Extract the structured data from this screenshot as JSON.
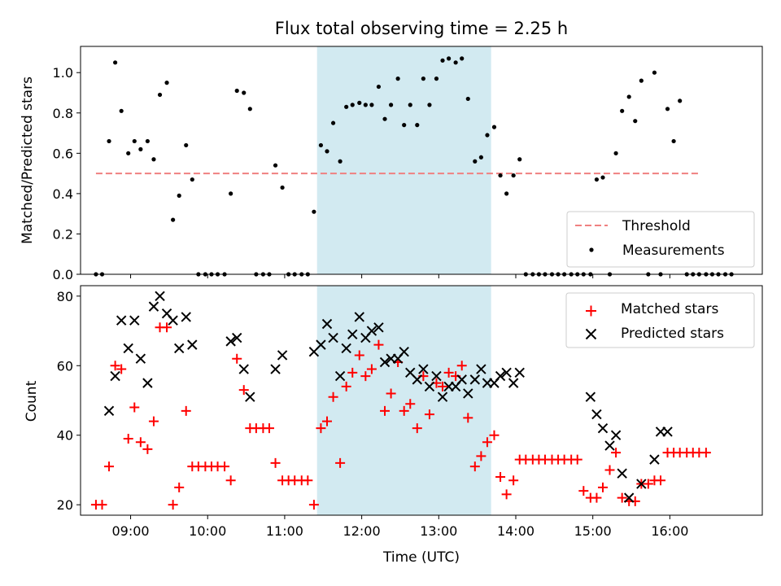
{
  "chart_data": [
    {
      "type": "scatter",
      "title": "Flux total observing time = 2.25 h",
      "xlabel": "",
      "ylabel": "Matched/Predicted stars",
      "xlim": [
        8.35,
        17.2
      ],
      "ylim": [
        0,
        1.13
      ],
      "yticks": [
        0.0,
        0.2,
        0.4,
        0.6,
        0.8,
        1.0
      ],
      "ytick_labels": [
        "0.0",
        "0.2",
        "0.4",
        "0.6",
        "0.8",
        "1.0"
      ],
      "xticks": [
        9,
        10,
        11,
        12,
        13,
        14,
        15,
        16
      ],
      "xtick_labels_visible": false,
      "shaded_region": {
        "x": [
          11.42,
          13.68
        ],
        "color": "#add8e6"
      },
      "threshold": {
        "name": "Threshold",
        "y": 0.5,
        "x": [
          8.55,
          16.4
        ],
        "color": "#f08080"
      },
      "legend_position": "bottom-right",
      "series": [
        {
          "name": "Measurements",
          "color": "#000000",
          "marker": "dot",
          "points": [
            [
              8.55,
              0.0
            ],
            [
              8.63,
              0.0
            ],
            [
              8.72,
              0.66
            ],
            [
              8.8,
              1.05
            ],
            [
              8.88,
              0.81
            ],
            [
              8.97,
              0.6
            ],
            [
              9.05,
              0.66
            ],
            [
              9.13,
              0.62
            ],
            [
              9.22,
              0.66
            ],
            [
              9.3,
              0.57
            ],
            [
              9.38,
              0.89
            ],
            [
              9.47,
              0.95
            ],
            [
              9.55,
              0.27
            ],
            [
              9.63,
              0.39
            ],
            [
              9.72,
              0.64
            ],
            [
              9.8,
              0.47
            ],
            [
              9.88,
              0.0
            ],
            [
              9.97,
              0.0
            ],
            [
              10.05,
              0.0
            ],
            [
              10.13,
              0.0
            ],
            [
              10.22,
              0.0
            ],
            [
              10.3,
              0.4
            ],
            [
              10.38,
              0.91
            ],
            [
              10.47,
              0.9
            ],
            [
              10.55,
              0.82
            ],
            [
              10.63,
              0.0
            ],
            [
              10.72,
              0.0
            ],
            [
              10.8,
              0.0
            ],
            [
              10.88,
              0.54
            ],
            [
              10.97,
              0.43
            ],
            [
              11.05,
              0.0
            ],
            [
              11.13,
              0.0
            ],
            [
              11.22,
              0.0
            ],
            [
              11.3,
              0.0
            ],
            [
              11.38,
              0.31
            ],
            [
              11.47,
              0.64
            ],
            [
              11.55,
              0.61
            ],
            [
              11.63,
              0.75
            ],
            [
              11.72,
              0.56
            ],
            [
              11.8,
              0.83
            ],
            [
              11.88,
              0.84
            ],
            [
              11.97,
              0.85
            ],
            [
              12.05,
              0.84
            ],
            [
              12.13,
              0.84
            ],
            [
              12.22,
              0.93
            ],
            [
              12.3,
              0.77
            ],
            [
              12.38,
              0.84
            ],
            [
              12.47,
              0.97
            ],
            [
              12.55,
              0.74
            ],
            [
              12.63,
              0.84
            ],
            [
              12.72,
              0.74
            ],
            [
              12.8,
              0.97
            ],
            [
              12.88,
              0.84
            ],
            [
              12.97,
              0.97
            ],
            [
              13.05,
              1.06
            ],
            [
              13.13,
              1.07
            ],
            [
              13.22,
              1.05
            ],
            [
              13.3,
              1.07
            ],
            [
              13.38,
              0.87
            ],
            [
              13.47,
              0.56
            ],
            [
              13.55,
              0.58
            ],
            [
              13.63,
              0.69
            ],
            [
              13.72,
              0.73
            ],
            [
              13.8,
              0.49
            ],
            [
              13.88,
              0.4
            ],
            [
              13.97,
              0.49
            ],
            [
              14.05,
              0.57
            ],
            [
              14.13,
              0.0
            ],
            [
              14.22,
              0.0
            ],
            [
              14.3,
              0.0
            ],
            [
              14.38,
              0.0
            ],
            [
              14.47,
              0.0
            ],
            [
              14.55,
              0.0
            ],
            [
              14.63,
              0.0
            ],
            [
              14.72,
              0.0
            ],
            [
              14.8,
              0.0
            ],
            [
              14.88,
              0.0
            ],
            [
              14.97,
              0.0
            ],
            [
              15.05,
              0.47
            ],
            [
              15.13,
              0.48
            ],
            [
              15.22,
              0.0
            ],
            [
              15.3,
              0.6
            ],
            [
              15.38,
              0.81
            ],
            [
              15.47,
              0.88
            ],
            [
              15.55,
              0.76
            ],
            [
              15.63,
              0.96
            ],
            [
              15.72,
              0.0
            ],
            [
              15.8,
              1.0
            ],
            [
              15.88,
              0.0
            ],
            [
              15.97,
              0.82
            ],
            [
              16.05,
              0.66
            ],
            [
              16.13,
              0.86
            ],
            [
              16.22,
              0.0
            ],
            [
              16.3,
              0.0
            ],
            [
              16.38,
              0.0
            ],
            [
              16.47,
              0.0
            ],
            [
              16.55,
              0.0
            ],
            [
              16.63,
              0.0
            ],
            [
              16.72,
              0.0
            ],
            [
              16.8,
              0.0
            ]
          ]
        }
      ]
    },
    {
      "type": "scatter",
      "title": "",
      "xlabel": "Time (UTC)",
      "ylabel": "Count",
      "xlim": [
        8.35,
        17.2
      ],
      "ylim": [
        17,
        83
      ],
      "yticks": [
        20,
        40,
        60,
        80
      ],
      "ytick_labels": [
        "20",
        "40",
        "60",
        "80"
      ],
      "xticks": [
        9,
        10,
        11,
        12,
        13,
        14,
        15,
        16
      ],
      "xtick_labels": [
        "09:00",
        "10:00",
        "11:00",
        "12:00",
        "13:00",
        "14:00",
        "15:00",
        "16:00"
      ],
      "shaded_region": {
        "x": [
          11.42,
          13.68
        ],
        "color": "#add8e6"
      },
      "legend_position": "top-right",
      "series": [
        {
          "name": "Matched stars",
          "color": "#ff0000",
          "marker": "plus",
          "points": [
            [
              8.55,
              20
            ],
            [
              8.63,
              20
            ],
            [
              8.72,
              31
            ],
            [
              8.8,
              60
            ],
            [
              8.88,
              59
            ],
            [
              8.97,
              39
            ],
            [
              9.05,
              48
            ],
            [
              9.13,
              38
            ],
            [
              9.22,
              36
            ],
            [
              9.3,
              44
            ],
            [
              9.38,
              71
            ],
            [
              9.47,
              71
            ],
            [
              9.55,
              20
            ],
            [
              9.63,
              25
            ],
            [
              9.72,
              47
            ],
            [
              9.8,
              31
            ],
            [
              9.88,
              31
            ],
            [
              9.97,
              31
            ],
            [
              10.05,
              31
            ],
            [
              10.13,
              31
            ],
            [
              10.22,
              31
            ],
            [
              10.3,
              27
            ],
            [
              10.38,
              62
            ],
            [
              10.47,
              53
            ],
            [
              10.55,
              42
            ],
            [
              10.63,
              42
            ],
            [
              10.72,
              42
            ],
            [
              10.8,
              42
            ],
            [
              10.88,
              32
            ],
            [
              10.97,
              27
            ],
            [
              11.05,
              27
            ],
            [
              11.13,
              27
            ],
            [
              11.22,
              27
            ],
            [
              11.3,
              27
            ],
            [
              11.38,
              20
            ],
            [
              11.47,
              42
            ],
            [
              11.55,
              44
            ],
            [
              11.63,
              51
            ],
            [
              11.72,
              32
            ],
            [
              11.8,
              54
            ],
            [
              11.88,
              58
            ],
            [
              11.97,
              63
            ],
            [
              12.05,
              57
            ],
            [
              12.13,
              59
            ],
            [
              12.22,
              66
            ],
            [
              12.3,
              47
            ],
            [
              12.38,
              52
            ],
            [
              12.47,
              61
            ],
            [
              12.55,
              47
            ],
            [
              12.63,
              49
            ],
            [
              12.72,
              42
            ],
            [
              12.8,
              57
            ],
            [
              12.88,
              46
            ],
            [
              12.97,
              55
            ],
            [
              13.05,
              54
            ],
            [
              13.13,
              58
            ],
            [
              13.22,
              57
            ],
            [
              13.3,
              60
            ],
            [
              13.38,
              45
            ],
            [
              13.47,
              31
            ],
            [
              13.55,
              34
            ],
            [
              13.63,
              38
            ],
            [
              13.72,
              40
            ],
            [
              13.8,
              28
            ],
            [
              13.88,
              23
            ],
            [
              13.97,
              27
            ],
            [
              14.05,
              33
            ],
            [
              14.13,
              33
            ],
            [
              14.22,
              33
            ],
            [
              14.3,
              33
            ],
            [
              14.38,
              33
            ],
            [
              14.47,
              33
            ],
            [
              14.55,
              33
            ],
            [
              14.63,
              33
            ],
            [
              14.72,
              33
            ],
            [
              14.8,
              33
            ],
            [
              14.88,
              24
            ],
            [
              14.97,
              22
            ],
            [
              15.05,
              22
            ],
            [
              15.13,
              25
            ],
            [
              15.22,
              30
            ],
            [
              15.3,
              35
            ],
            [
              15.38,
              22
            ],
            [
              15.47,
              21
            ],
            [
              15.55,
              21
            ],
            [
              15.63,
              26
            ],
            [
              15.72,
              26
            ],
            [
              15.8,
              27
            ],
            [
              15.88,
              27
            ],
            [
              15.97,
              35
            ],
            [
              16.05,
              35
            ],
            [
              16.13,
              35
            ],
            [
              16.22,
              35
            ],
            [
              16.3,
              35
            ],
            [
              16.38,
              35
            ],
            [
              16.47,
              35
            ]
          ]
        },
        {
          "name": "Predicted stars",
          "color": "#000000",
          "marker": "x",
          "points": [
            [
              8.72,
              47
            ],
            [
              8.8,
              57
            ],
            [
              8.88,
              73
            ],
            [
              8.97,
              65
            ],
            [
              9.05,
              73
            ],
            [
              9.13,
              62
            ],
            [
              9.22,
              55
            ],
            [
              9.3,
              77
            ],
            [
              9.38,
              80
            ],
            [
              9.47,
              75
            ],
            [
              9.55,
              73
            ],
            [
              9.63,
              65
            ],
            [
              9.72,
              74
            ],
            [
              9.8,
              66
            ],
            [
              10.3,
              67
            ],
            [
              10.38,
              68
            ],
            [
              10.47,
              59
            ],
            [
              10.55,
              51
            ],
            [
              10.88,
              59
            ],
            [
              10.97,
              63
            ],
            [
              11.38,
              64
            ],
            [
              11.47,
              66
            ],
            [
              11.55,
              72
            ],
            [
              11.63,
              68
            ],
            [
              11.72,
              57
            ],
            [
              11.8,
              65
            ],
            [
              11.88,
              69
            ],
            [
              11.97,
              74
            ],
            [
              12.05,
              68
            ],
            [
              12.13,
              70
            ],
            [
              12.22,
              71
            ],
            [
              12.3,
              61
            ],
            [
              12.38,
              62
            ],
            [
              12.47,
              62
            ],
            [
              12.55,
              64
            ],
            [
              12.63,
              58
            ],
            [
              12.72,
              56
            ],
            [
              12.8,
              59
            ],
            [
              12.88,
              54
            ],
            [
              12.97,
              57
            ],
            [
              13.05,
              51
            ],
            [
              13.13,
              54
            ],
            [
              13.22,
              54
            ],
            [
              13.3,
              56
            ],
            [
              13.38,
              52
            ],
            [
              13.47,
              56
            ],
            [
              13.55,
              59
            ],
            [
              13.63,
              55
            ],
            [
              13.72,
              55
            ],
            [
              13.8,
              57
            ],
            [
              13.88,
              58
            ],
            [
              13.97,
              55
            ],
            [
              14.05,
              58
            ],
            [
              14.97,
              51
            ],
            [
              15.05,
              46
            ],
            [
              15.13,
              42
            ],
            [
              15.22,
              37
            ],
            [
              15.3,
              40
            ],
            [
              15.38,
              29
            ],
            [
              15.47,
              22
            ],
            [
              15.63,
              26
            ],
            [
              15.8,
              33
            ],
            [
              15.88,
              41
            ],
            [
              15.97,
              41
            ]
          ]
        }
      ]
    }
  ]
}
